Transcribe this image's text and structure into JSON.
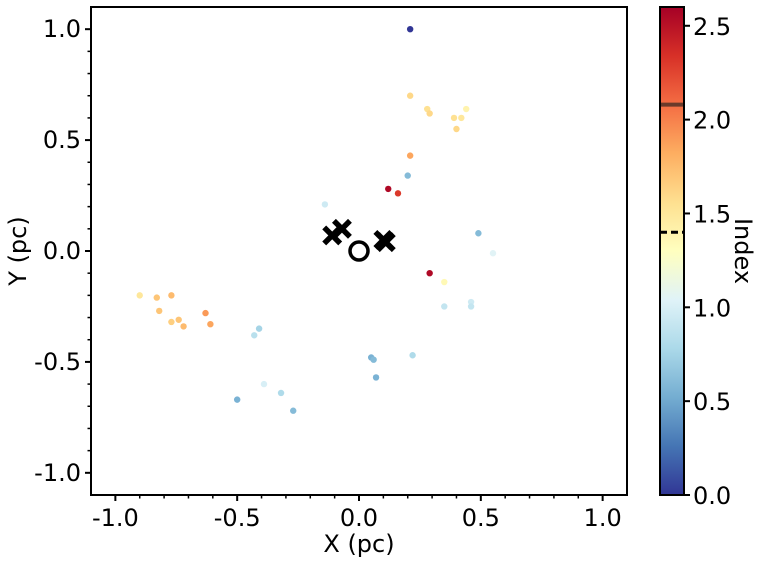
{
  "chart_data": {
    "type": "scatter",
    "xlabel": "X (pc)",
    "ylabel": "Y (pc)",
    "xlim": [
      -1.1,
      1.1
    ],
    "ylim": [
      -1.1,
      1.1
    ],
    "xticks": [
      -1.0,
      -0.5,
      0.0,
      0.5,
      1.0
    ],
    "xtick_labels": [
      "-1.0",
      "-0.5",
      "0.0",
      "0.5",
      "1.0"
    ],
    "yticks": [
      1.0,
      0.5,
      0.0,
      -0.5,
      -1.0
    ],
    "ytick_labels": [
      "1.0",
      "0.5",
      "0.0",
      "-0.5",
      "-1.0"
    ],
    "grid": false,
    "colorbar": {
      "label": "Index",
      "range": [
        0.0,
        2.6
      ],
      "ticks": [
        0.0,
        0.5,
        1.0,
        1.5,
        2.0,
        2.5
      ],
      "tick_labels": [
        "0.0",
        "0.5",
        "1.0",
        "1.5",
        "2.0",
        "2.5"
      ],
      "colormap": "RdYlBu_r",
      "solid_line": 2.08,
      "dashed_line": 1.4
    },
    "points": [
      {
        "x": 0.21,
        "y": 1.0,
        "c": 0.0
      },
      {
        "x": 0.21,
        "y": 0.7,
        "c": 1.6
      },
      {
        "x": 0.28,
        "y": 0.64,
        "c": 1.55
      },
      {
        "x": 0.29,
        "y": 0.62,
        "c": 1.6
      },
      {
        "x": 0.44,
        "y": 0.64,
        "c": 1.4
      },
      {
        "x": 0.39,
        "y": 0.6,
        "c": 1.55
      },
      {
        "x": 0.42,
        "y": 0.6,
        "c": 1.5
      },
      {
        "x": 0.4,
        "y": 0.55,
        "c": 1.6
      },
      {
        "x": 0.21,
        "y": 0.43,
        "c": 1.85
      },
      {
        "x": 0.2,
        "y": 0.34,
        "c": 0.6
      },
      {
        "x": 0.12,
        "y": 0.28,
        "c": 2.55
      },
      {
        "x": 0.16,
        "y": 0.26,
        "c": 2.3
      },
      {
        "x": -0.14,
        "y": 0.21,
        "c": 0.95
      },
      {
        "x": 0.49,
        "y": 0.08,
        "c": 0.6
      },
      {
        "x": 0.55,
        "y": -0.01,
        "c": 1.05
      },
      {
        "x": 0.29,
        "y": -0.1,
        "c": 2.55
      },
      {
        "x": 0.35,
        "y": -0.14,
        "c": 1.35
      },
      {
        "x": 0.46,
        "y": -0.23,
        "c": 0.95
      },
      {
        "x": 0.46,
        "y": -0.25,
        "c": 0.9
      },
      {
        "x": 0.35,
        "y": -0.25,
        "c": 0.9
      },
      {
        "x": -0.9,
        "y": -0.2,
        "c": 1.5
      },
      {
        "x": -0.83,
        "y": -0.21,
        "c": 1.7
      },
      {
        "x": -0.77,
        "y": -0.2,
        "c": 1.75
      },
      {
        "x": -0.82,
        "y": -0.27,
        "c": 1.7
      },
      {
        "x": -0.77,
        "y": -0.32,
        "c": 1.65
      },
      {
        "x": -0.74,
        "y": -0.31,
        "c": 1.7
      },
      {
        "x": -0.72,
        "y": -0.34,
        "c": 1.75
      },
      {
        "x": -0.63,
        "y": -0.28,
        "c": 1.9
      },
      {
        "x": -0.61,
        "y": -0.33,
        "c": 1.85
      },
      {
        "x": -0.41,
        "y": -0.35,
        "c": 0.75
      },
      {
        "x": -0.43,
        "y": -0.38,
        "c": 0.85
      },
      {
        "x": 0.05,
        "y": -0.48,
        "c": 0.55
      },
      {
        "x": 0.06,
        "y": -0.49,
        "c": 0.6
      },
      {
        "x": 0.22,
        "y": -0.47,
        "c": 0.8
      },
      {
        "x": 0.07,
        "y": -0.57,
        "c": 0.55
      },
      {
        "x": -0.39,
        "y": -0.6,
        "c": 1.0
      },
      {
        "x": -0.32,
        "y": -0.64,
        "c": 0.8
      },
      {
        "x": -0.5,
        "y": -0.67,
        "c": 0.55
      },
      {
        "x": -0.27,
        "y": -0.72,
        "c": 0.6
      }
    ],
    "cross_markers": [
      {
        "x": -0.11,
        "y": 0.07
      },
      {
        "x": -0.07,
        "y": 0.1
      },
      {
        "x": 0.1,
        "y": 0.05
      },
      {
        "x": 0.11,
        "y": 0.04
      }
    ],
    "circle_markers": [
      {
        "x": 0.0,
        "y": 0.0
      }
    ]
  }
}
